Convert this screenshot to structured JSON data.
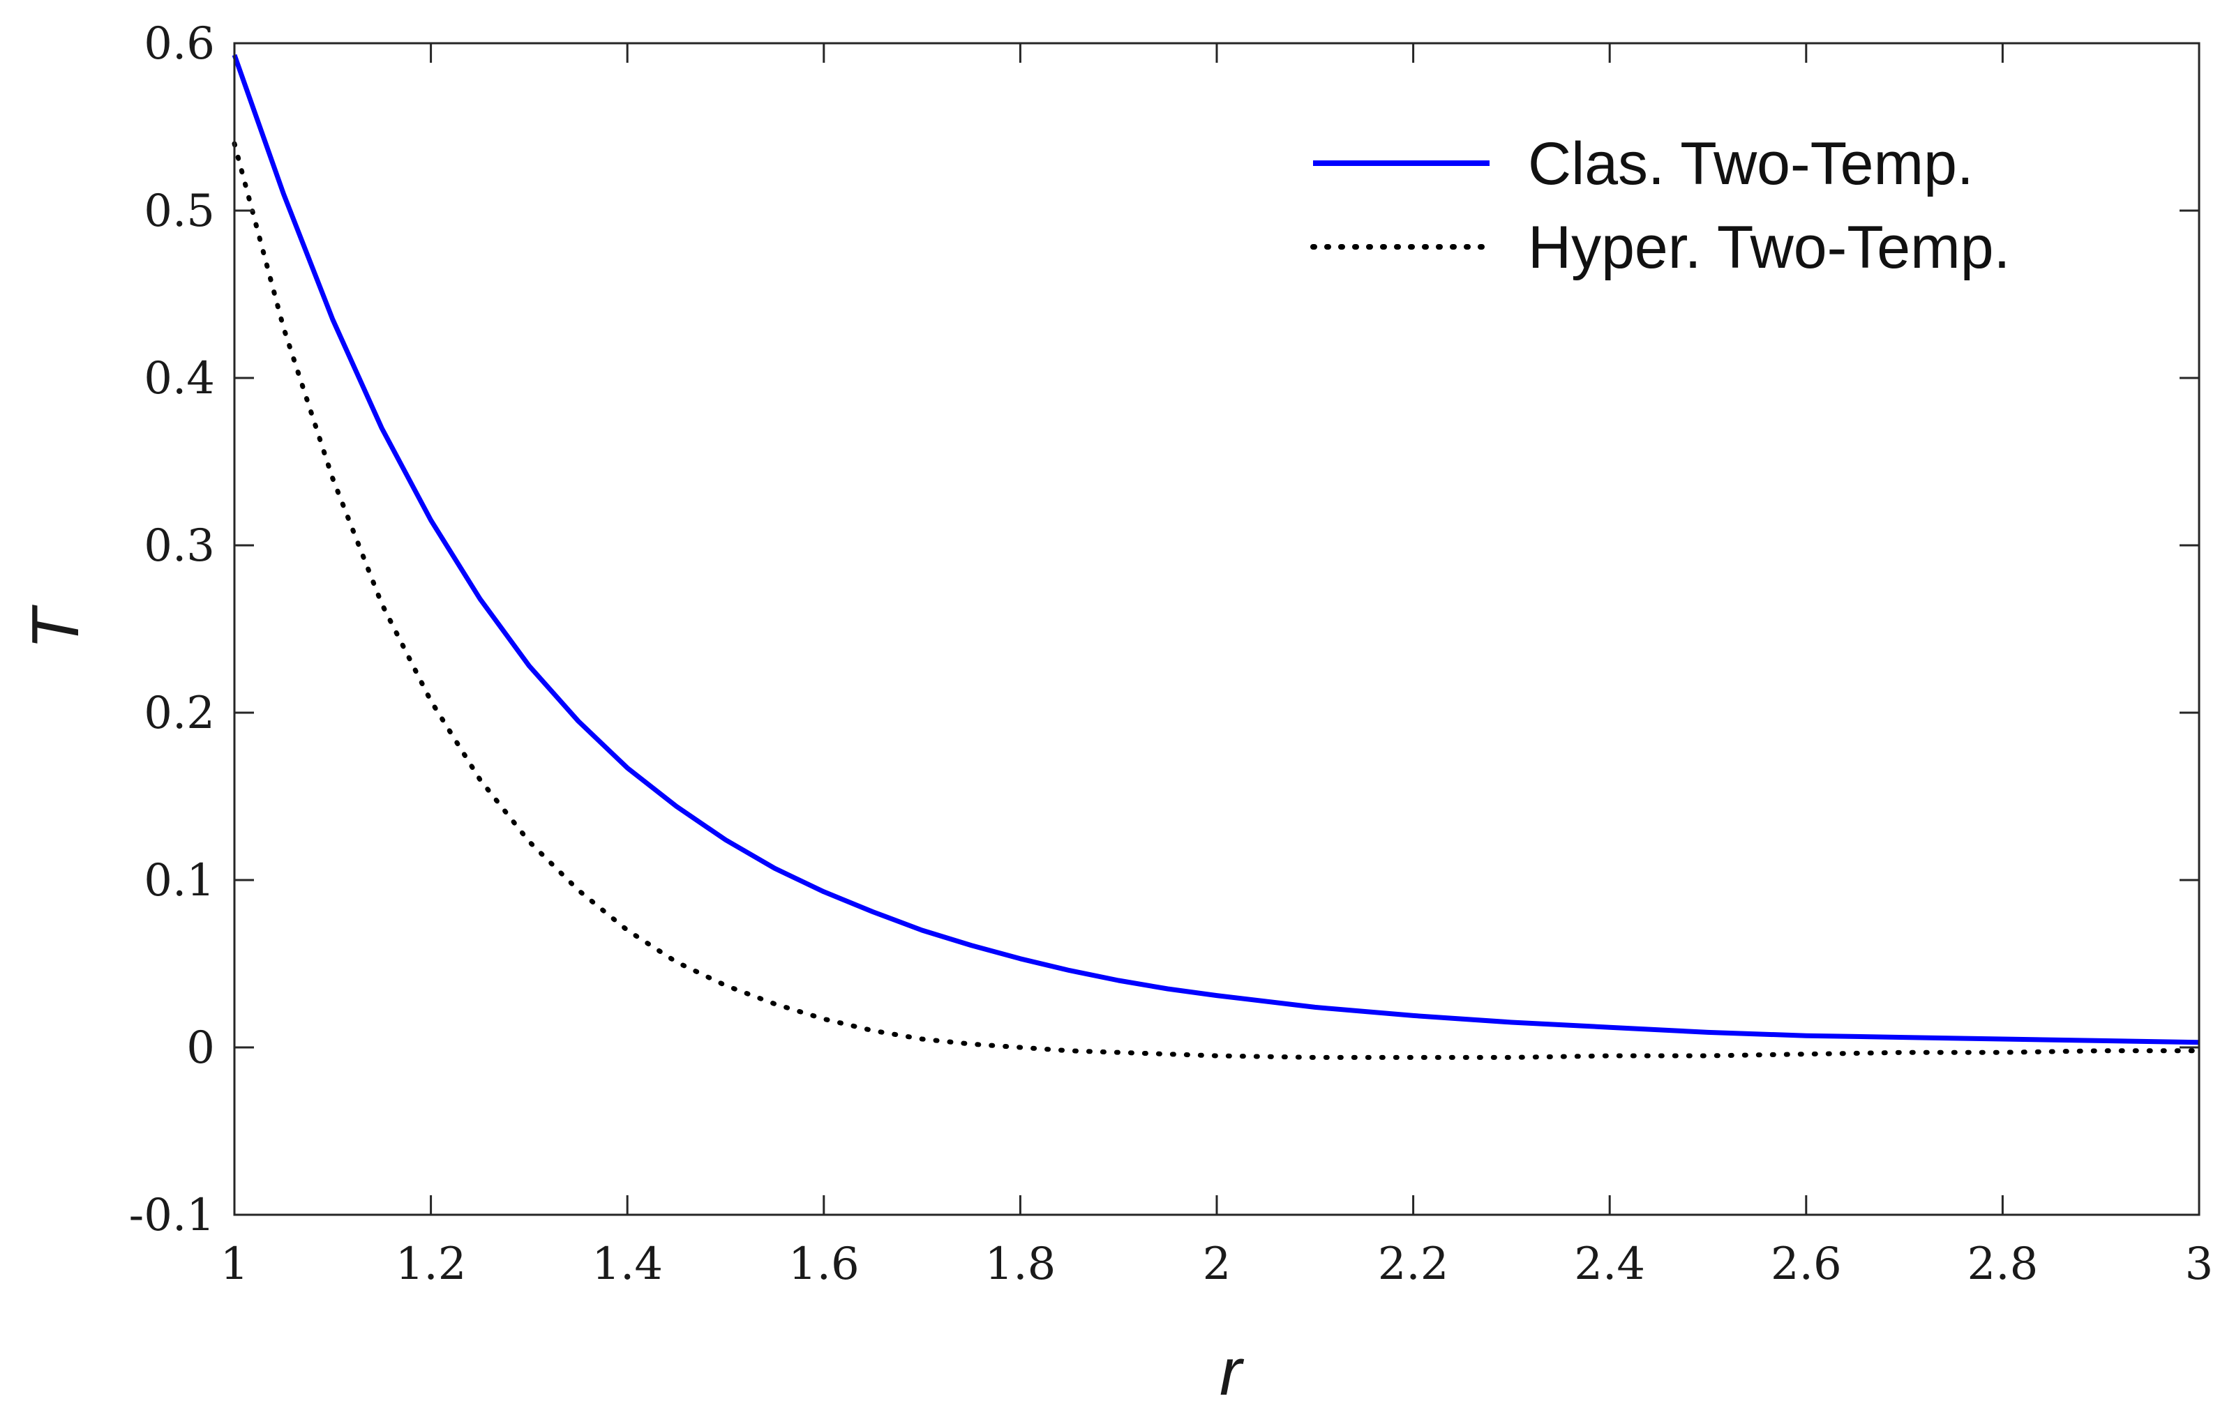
{
  "chart_data": {
    "type": "line",
    "title": "",
    "xlabel": "r",
    "ylabel": "T",
    "xlim": [
      1,
      3
    ],
    "ylim": [
      -0.1,
      0.6
    ],
    "xticks": [
      1,
      1.2,
      1.4,
      1.6,
      1.8,
      2,
      2.2,
      2.4,
      2.6,
      2.8,
      3
    ],
    "xtick_labels": [
      "1",
      "1.2",
      "1.4",
      "1.6",
      "1.8",
      "2",
      "2.2",
      "2.4",
      "2.6",
      "2.8",
      "3"
    ],
    "yticks": [
      -0.1,
      0,
      0.1,
      0.2,
      0.3,
      0.4,
      0.5,
      0.6
    ],
    "ytick_labels": [
      "-0.1",
      "0",
      "0.1",
      "0.2",
      "0.3",
      "0.4",
      "0.5",
      "0.6"
    ],
    "grid": false,
    "legend_position": "top-right",
    "series": [
      {
        "name": "Clas. Two-Temp.",
        "color": "#0000ff",
        "style": "solid",
        "x": [
          1.0,
          1.05,
          1.1,
          1.15,
          1.2,
          1.25,
          1.3,
          1.35,
          1.4,
          1.45,
          1.5,
          1.55,
          1.6,
          1.65,
          1.7,
          1.75,
          1.8,
          1.85,
          1.9,
          1.95,
          2.0,
          2.1,
          2.2,
          2.3,
          2.4,
          2.5,
          2.6,
          2.7,
          2.8,
          2.9,
          3.0
        ],
        "y": [
          0.593,
          0.51,
          0.435,
          0.37,
          0.315,
          0.268,
          0.228,
          0.195,
          0.167,
          0.144,
          0.124,
          0.107,
          0.093,
          0.081,
          0.07,
          0.061,
          0.053,
          0.046,
          0.04,
          0.035,
          0.031,
          0.024,
          0.019,
          0.015,
          0.012,
          0.009,
          0.007,
          0.006,
          0.005,
          0.004,
          0.003
        ]
      },
      {
        "name": "Hyper. Two-Temp.",
        "color": "#000000",
        "style": "dotted",
        "x": [
          1.0,
          1.05,
          1.1,
          1.15,
          1.2,
          1.25,
          1.3,
          1.35,
          1.4,
          1.45,
          1.5,
          1.55,
          1.6,
          1.65,
          1.7,
          1.75,
          1.8,
          1.85,
          1.9,
          1.95,
          2.0,
          2.1,
          2.2,
          2.3,
          2.4,
          2.5,
          2.6,
          2.7,
          2.8,
          2.9,
          3.0
        ],
        "y": [
          0.54,
          0.43,
          0.34,
          0.265,
          0.207,
          0.16,
          0.123,
          0.094,
          0.07,
          0.051,
          0.037,
          0.026,
          0.017,
          0.01,
          0.005,
          0.002,
          0.0,
          -0.002,
          -0.003,
          -0.004,
          -0.005,
          -0.006,
          -0.006,
          -0.006,
          -0.005,
          -0.005,
          -0.004,
          -0.003,
          -0.003,
          -0.002,
          -0.002
        ]
      }
    ]
  }
}
